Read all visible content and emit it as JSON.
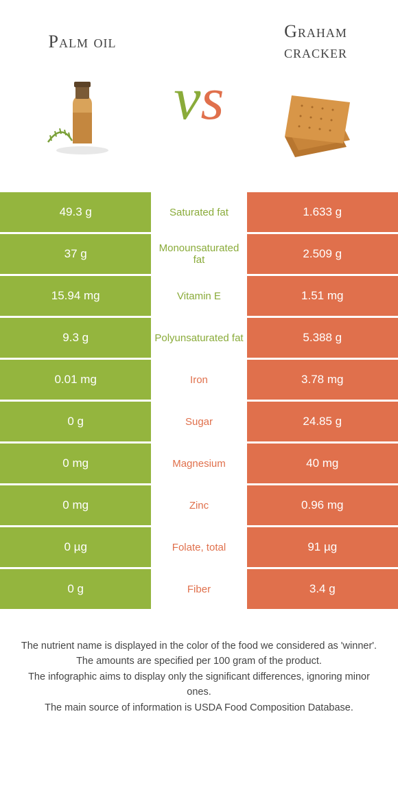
{
  "colors": {
    "left": "#94b53e",
    "left_text": "#8aab3a",
    "right": "#e0704c",
    "right_text": "#e0704c",
    "bg": "#ffffff"
  },
  "header": {
    "left_title": "Palm oil",
    "right_title": "Graham cracker",
    "vs_v": "v",
    "vs_s": "s"
  },
  "rows": [
    {
      "left_val": "49.3 g",
      "label": "Saturated fat",
      "right_val": "1.633 g",
      "winner": "left"
    },
    {
      "left_val": "37 g",
      "label": "Monounsaturated fat",
      "right_val": "2.509 g",
      "winner": "left"
    },
    {
      "left_val": "15.94 mg",
      "label": "Vitamin E",
      "right_val": "1.51 mg",
      "winner": "left"
    },
    {
      "left_val": "9.3 g",
      "label": "Polyunsaturated fat",
      "right_val": "5.388 g",
      "winner": "left"
    },
    {
      "left_val": "0.01 mg",
      "label": "Iron",
      "right_val": "3.78 mg",
      "winner": "right"
    },
    {
      "left_val": "0 g",
      "label": "Sugar",
      "right_val": "24.85 g",
      "winner": "right"
    },
    {
      "left_val": "0 mg",
      "label": "Magnesium",
      "right_val": "40 mg",
      "winner": "right"
    },
    {
      "left_val": "0 mg",
      "label": "Zinc",
      "right_val": "0.96 mg",
      "winner": "right"
    },
    {
      "left_val": "0 µg",
      "label": "Folate, total",
      "right_val": "91 µg",
      "winner": "right"
    },
    {
      "left_val": "0 g",
      "label": "Fiber",
      "right_val": "3.4 g",
      "winner": "right"
    }
  ],
  "footnotes": [
    "The nutrient name is displayed in the color of the food we considered as 'winner'.",
    "The amounts are specified per 100 gram of the product.",
    "The infographic aims to display only the significant differences, ignoring minor ones.",
    "The main source of information is USDA Food Composition Database."
  ]
}
